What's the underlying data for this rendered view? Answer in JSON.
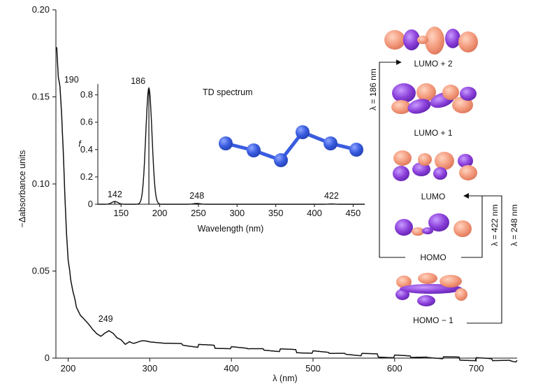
{
  "chart_data": [
    {
      "type": "line",
      "name": "main-absorbance",
      "xlabel": "λ (nm)",
      "ylabel": "−Δabsorbance units",
      "xlim": [
        185,
        750
      ],
      "ylim": [
        0,
        0.2
      ],
      "xticks": [
        200,
        300,
        400,
        500,
        600,
        700
      ],
      "yticks": [
        0,
        0.05,
        0.1,
        0.15,
        0.2
      ],
      "ytick_labels": [
        "0",
        "0.05",
        "0.10",
        "0.15",
        "0.20"
      ],
      "x": [
        186,
        188,
        190,
        192,
        194,
        196,
        198,
        200,
        203,
        206,
        210,
        215,
        220,
        225,
        230,
        235,
        240,
        245,
        250,
        255,
        260,
        265,
        270,
        275,
        280,
        290,
        300,
        320,
        340,
        360,
        380,
        400,
        420,
        440,
        460,
        480,
        500,
        520,
        540,
        560,
        580,
        600,
        620,
        640,
        660,
        680,
        700,
        720,
        740,
        750
      ],
      "y": [
        0.178,
        0.16,
        0.155,
        0.14,
        0.12,
        0.095,
        0.072,
        0.056,
        0.046,
        0.038,
        0.03,
        0.025,
        0.022,
        0.019,
        0.016,
        0.014,
        0.013,
        0.015,
        0.016,
        0.014,
        0.011,
        0.01,
        0.008,
        0.01,
        0.009,
        0.0095,
        0.009,
        0.0085,
        0.008,
        0.007,
        0.0065,
        0.006,
        0.0055,
        0.005,
        0.0045,
        0.004,
        0.0035,
        0.003,
        0.0025,
        0.002,
        0.0015,
        0.001,
        0.0008,
        0.0005,
        0.0002,
        -0.0003,
        -0.0006,
        -0.0009,
        -0.0012,
        -0.0013
      ],
      "annotations": [
        {
          "text": "190",
          "x": 190,
          "y": 0.155
        },
        {
          "text": "249",
          "x": 249,
          "y": 0.016
        }
      ]
    },
    {
      "type": "line",
      "name": "td-spectrum-inset",
      "title": "TD spectrum",
      "xlabel": "Wavelength (nm)",
      "ylabel": "f",
      "xlim": [
        120,
        465
      ],
      "ylim": [
        0,
        0.88
      ],
      "xticks": [
        150,
        200,
        250,
        300,
        350,
        400,
        450
      ],
      "yticks": [
        0,
        0.2,
        0.4,
        0.6,
        0.8
      ],
      "ytick_labels": [
        "0",
        "0.2",
        "0.4",
        "0.6",
        "0.8"
      ],
      "sticks": [
        {
          "x": 142,
          "f": 0.02
        },
        {
          "x": 186,
          "f": 0.85
        },
        {
          "x": 248,
          "f": 0.006
        },
        {
          "x": 422,
          "f": 0.002
        }
      ],
      "broadening_sigma_nm": 4,
      "annotations": [
        {
          "text": "142",
          "x": 142
        },
        {
          "text": "186",
          "x": 186
        },
        {
          "text": "248",
          "x": 248
        },
        {
          "text": "422",
          "x": 422
        }
      ]
    }
  ],
  "orbitals": {
    "labels": [
      "LUMO + 2",
      "LUMO + 1",
      "LUMO",
      "HOMO",
      "HOMO − 1"
    ],
    "colors": {
      "lobe_a": "#f39a7c",
      "lobe_b": "#8a3fd9",
      "chain": "#3b5bdb"
    },
    "transitions": [
      {
        "label": "λ = 186 nm",
        "from": "HOMO",
        "to": "LUMO + 2"
      },
      {
        "label": "λ = 422 nm",
        "from": "HOMO",
        "to": "LUMO"
      },
      {
        "label": "λ = 248 nm",
        "from": "HOMO − 1",
        "to": "LUMO"
      }
    ]
  },
  "molecule": {
    "atom_color": "#3a5ce0",
    "bond_color": "#3a5ce0"
  }
}
